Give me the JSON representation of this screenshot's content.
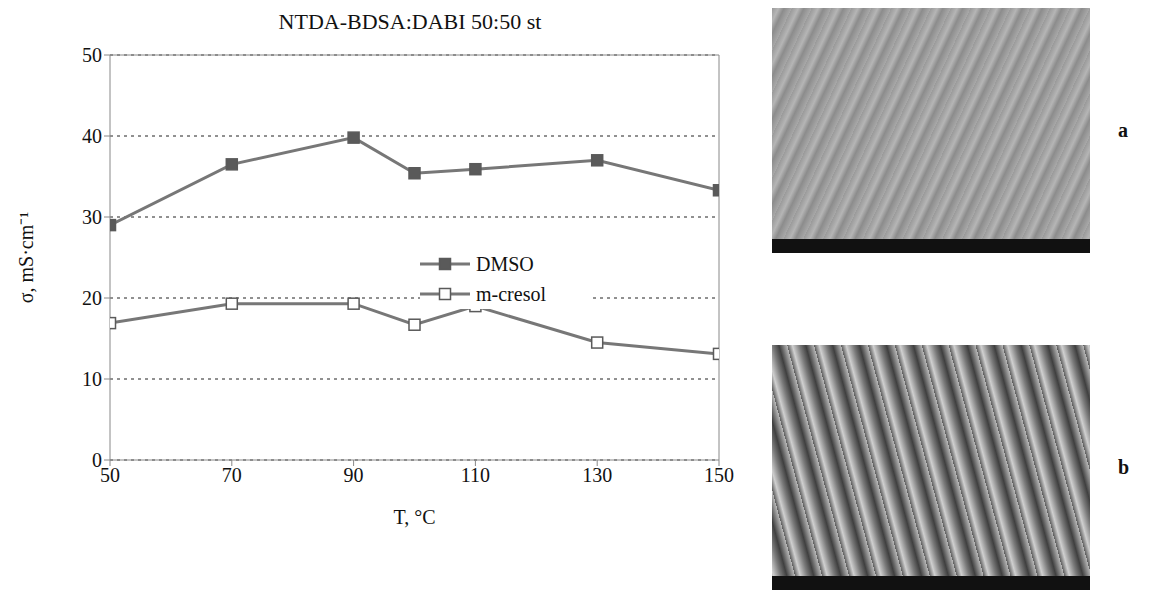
{
  "chart_data": {
    "type": "line",
    "title": "NTDA-BDSA:DABI 50:50 st",
    "x_label": "T, °C",
    "y_label": "σ, mS·cm⁻¹",
    "x": [
      50,
      70,
      90,
      100,
      110,
      130,
      150
    ],
    "series": [
      {
        "name": "DMSO",
        "color": "#777777",
        "marker": "square",
        "line_style": "solid",
        "values": [
          29,
          36.5,
          39.8,
          35.4,
          35.9,
          37,
          33.3
        ]
      },
      {
        "name": "m-cresol",
        "color": "#777777",
        "marker": "square_open",
        "line_style": "solid",
        "values": [
          16.9,
          19.3,
          19.3,
          16.7,
          19,
          14.5,
          13.1
        ]
      }
    ],
    "xlim": [
      50,
      150
    ],
    "xticks": [
      50,
      70,
      90,
      110,
      130,
      150
    ],
    "ylim": [
      0,
      50
    ],
    "yticks": [
      0,
      10,
      20,
      30,
      40,
      50
    ],
    "grid": true,
    "legend": "center"
  },
  "images": [
    {
      "label": "a"
    },
    {
      "label": "b"
    }
  ]
}
